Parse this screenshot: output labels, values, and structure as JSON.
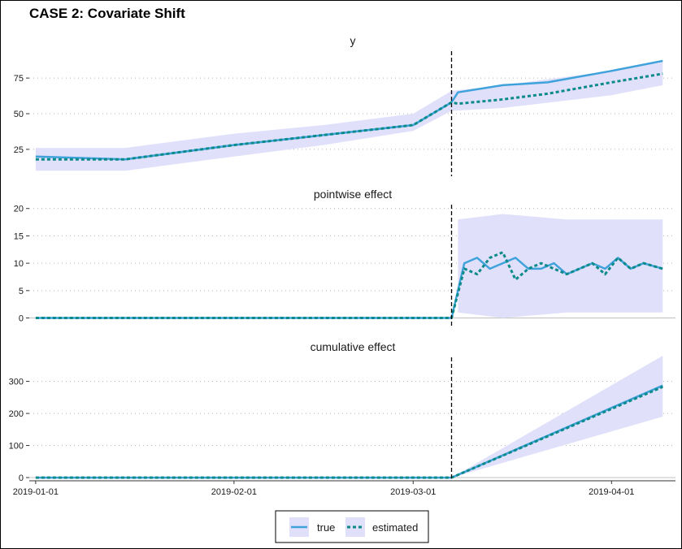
{
  "title": "CASE 2: Covariate Shift",
  "colors": {
    "true": "#3fa2db",
    "estimated": "#0b8a8a",
    "band": "#e0e0fb",
    "grid": "#b3b3b3",
    "intervention": "#000000"
  },
  "legend": {
    "true_label": "true",
    "estimated_label": "estimated"
  },
  "chart_data": [
    {
      "type": "line",
      "title": "y",
      "x_axis": {
        "start": "2019-01-01",
        "end": "2019-04-10",
        "ticks": [
          "2019-01-01",
          "2019-02-01",
          "2019-03-01",
          "2019-04-01"
        ]
      },
      "ylim": [
        5,
        95
      ],
      "yticks": [
        25,
        50,
        75
      ],
      "intervention_date": "2019-03-07",
      "series": [
        {
          "name": "true",
          "x": [
            "2019-01-01",
            "2019-01-15",
            "2019-02-01",
            "2019-02-15",
            "2019-03-01",
            "2019-03-07",
            "2019-03-08",
            "2019-03-15",
            "2019-03-22",
            "2019-04-01",
            "2019-04-09"
          ],
          "values": [
            20,
            18,
            28,
            35,
            42,
            58,
            65,
            70,
            72,
            80,
            87
          ]
        },
        {
          "name": "estimated",
          "x": [
            "2019-01-01",
            "2019-01-15",
            "2019-02-01",
            "2019-02-15",
            "2019-03-01",
            "2019-03-07",
            "2019-03-08",
            "2019-03-15",
            "2019-03-22",
            "2019-04-01",
            "2019-04-09"
          ],
          "values": [
            18,
            18,
            28,
            35,
            42,
            58,
            57,
            60,
            64,
            72,
            78
          ]
        }
      ],
      "band": {
        "x": [
          "2019-01-01",
          "2019-01-15",
          "2019-02-01",
          "2019-02-15",
          "2019-03-01",
          "2019-03-07",
          "2019-03-15",
          "2019-04-01",
          "2019-04-09"
        ],
        "lower": [
          10,
          10,
          20,
          28,
          38,
          52,
          54,
          63,
          70
        ],
        "upper": [
          26,
          26,
          36,
          42,
          50,
          66,
          70,
          80,
          86
        ]
      }
    },
    {
      "type": "line",
      "title": "pointwise effect",
      "x_axis": {
        "start": "2019-01-01",
        "end": "2019-04-10"
      },
      "ylim": [
        -2,
        21
      ],
      "yticks": [
        0,
        5,
        10,
        15,
        20
      ],
      "intervention_date": "2019-03-07",
      "series": [
        {
          "name": "true",
          "x": [
            "2019-01-01",
            "2019-03-07",
            "2019-03-09",
            "2019-03-11",
            "2019-03-13",
            "2019-03-15",
            "2019-03-17",
            "2019-03-19",
            "2019-03-21",
            "2019-03-23",
            "2019-03-25",
            "2019-03-27",
            "2019-03-29",
            "2019-03-31",
            "2019-04-02",
            "2019-04-04",
            "2019-04-06",
            "2019-04-09"
          ],
          "values": [
            0,
            0,
            10,
            11,
            9,
            10,
            11,
            9,
            9,
            10,
            8,
            9,
            10,
            9,
            11,
            9,
            10,
            9
          ]
        },
        {
          "name": "estimated",
          "x": [
            "2019-01-01",
            "2019-03-07",
            "2019-03-09",
            "2019-03-11",
            "2019-03-13",
            "2019-03-15",
            "2019-03-17",
            "2019-03-19",
            "2019-03-21",
            "2019-03-23",
            "2019-03-25",
            "2019-03-27",
            "2019-03-29",
            "2019-03-31",
            "2019-04-02",
            "2019-04-04",
            "2019-04-06",
            "2019-04-09"
          ],
          "values": [
            0,
            0,
            9,
            8,
            11,
            12,
            7,
            9,
            10,
            9,
            8,
            9,
            10,
            8,
            11,
            9,
            10,
            9
          ]
        }
      ],
      "band": {
        "x": [
          "2019-03-08",
          "2019-03-15",
          "2019-03-25",
          "2019-04-09"
        ],
        "lower": [
          1,
          0,
          1,
          1
        ],
        "upper": [
          18,
          19,
          18,
          18
        ]
      }
    },
    {
      "type": "line",
      "title": "cumulative effect",
      "x_axis": {
        "start": "2019-01-01",
        "end": "2019-04-10"
      },
      "ylim": [
        -10,
        380
      ],
      "yticks": [
        0,
        100,
        200,
        300
      ],
      "intervention_date": "2019-03-07",
      "series": [
        {
          "name": "true",
          "x": [
            "2019-01-01",
            "2019-03-07",
            "2019-04-09"
          ],
          "values": [
            0,
            0,
            287
          ]
        },
        {
          "name": "estimated",
          "x": [
            "2019-01-01",
            "2019-03-07",
            "2019-04-09"
          ],
          "values": [
            0,
            0,
            283
          ]
        }
      ],
      "band": {
        "x": [
          "2019-03-07",
          "2019-04-09"
        ],
        "lower": [
          0,
          190
        ],
        "upper": [
          0,
          380
        ]
      }
    }
  ]
}
